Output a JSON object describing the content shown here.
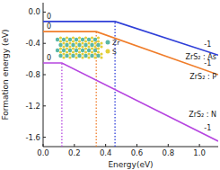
{
  "chart_data": {
    "type": "line",
    "x_label": "Energy(eV)",
    "y_label": "Formation energy (eV)",
    "xlim": [
      0,
      1.12
    ],
    "ylim": [
      -1.72,
      0.12
    ],
    "xticks": [
      {
        "value": 0,
        "label": "0.0"
      },
      {
        "value": 0.2,
        "label": "0.2"
      },
      {
        "value": 0.4,
        "label": "0.4"
      },
      {
        "value": 0.6,
        "label": "0.6"
      },
      {
        "value": 0.8,
        "label": "0.8"
      },
      {
        "value": 1,
        "label": "1.0"
      }
    ],
    "yticks": [
      {
        "value": 0,
        "label": "0.0"
      },
      {
        "value": -0.4,
        "label": "-0.4"
      },
      {
        "value": -0.8,
        "label": "-0.8"
      },
      {
        "value": -1.2,
        "label": "-1.2"
      },
      {
        "value": -1.6,
        "label": "-1.6"
      }
    ],
    "grid": false,
    "series": [
      {
        "name": "ZrS₂ : As",
        "color": "#2f3fd8",
        "x": [
          0,
          0.46,
          1.12
        ],
        "values": [
          -0.12,
          -0.12,
          -0.55
        ],
        "charge_states": [
          "0",
          "-1"
        ]
      },
      {
        "name": "ZrS₂ : P",
        "color": "#f07d2a",
        "x": [
          0,
          0.34,
          1.12
        ],
        "values": [
          -0.25,
          -0.25,
          -0.8
        ],
        "charge_states": [
          "0",
          "-1"
        ]
      },
      {
        "name": "ZrS₂ : N",
        "color": "#b646e0",
        "x": [
          0,
          0.12,
          1.12
        ],
        "values": [
          -0.65,
          -0.65,
          -1.65
        ],
        "charge_states": [
          "0",
          "-1"
        ]
      }
    ],
    "inset_legend": [
      {
        "label": "Zr",
        "color": "#5ab7a6"
      },
      {
        "label": "S",
        "color": "#e3cf3a"
      }
    ]
  }
}
